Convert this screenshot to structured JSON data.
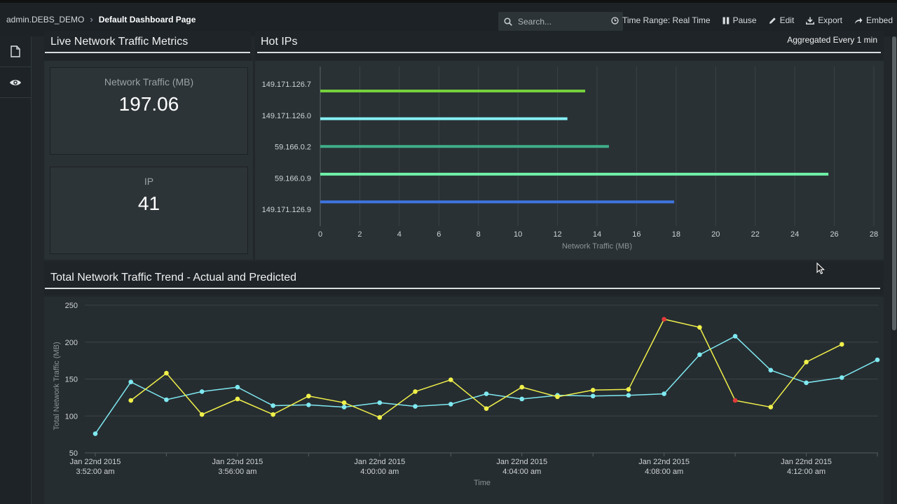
{
  "breadcrumb": {
    "user": "admin.DEBS_DEMO",
    "page": "Default Dashboard Page"
  },
  "search": {
    "placeholder": "Search..."
  },
  "toolbar": {
    "time_range": "Time Range: Real Time",
    "pause": "Pause",
    "edit": "Edit",
    "export": "Export",
    "embed": "Embed"
  },
  "sidebar": {
    "items": [
      {
        "icon": "document-icon"
      },
      {
        "icon": "eye-icon"
      }
    ]
  },
  "live_metrics": {
    "title": "Live Network Traffic Metrics",
    "traffic": {
      "label": "Network Traffic (MB)",
      "value": "197.06"
    },
    "ip": {
      "label": "IP",
      "value": "41"
    }
  },
  "hot_ips": {
    "title": "Hot IPs",
    "aggregation": "Aggregated Every 1 min",
    "chart_data": {
      "type": "bar",
      "orientation": "horizontal",
      "categories": [
        "149.171.126.7",
        "149.171.126.0",
        "59.166.0.2",
        "59.166.0.9",
        "149.171.126.9"
      ],
      "values": [
        13.4,
        12.5,
        14.6,
        25.7,
        17.9
      ],
      "colors": [
        "#74d03c",
        "#86f0f6",
        "#3fae8a",
        "#6ff2a8",
        "#3f74e0"
      ],
      "xlabel": "Network Traffic (MB)",
      "xlim": [
        0,
        28
      ],
      "xticks": [
        0,
        2,
        4,
        6,
        8,
        10,
        12,
        14,
        16,
        18,
        20,
        22,
        24,
        26,
        28
      ]
    }
  },
  "trend": {
    "title": "Total Network Traffic Trend - Actual and Predicted",
    "chart_data": {
      "type": "line",
      "ylabel": "Total Network Traffic (MB)",
      "xlabel": "Time",
      "ylim": [
        50,
        250
      ],
      "yticks": [
        50,
        100,
        150,
        200,
        250
      ],
      "xlim": [
        0,
        22
      ],
      "xticks": [
        {
          "x": 0,
          "line1": "Jan 22nd 2015",
          "line2": "3:52:00 am"
        },
        {
          "x": 4,
          "line1": "Jan 22nd 2015",
          "line2": "3:56:00 am"
        },
        {
          "x": 8,
          "line1": "Jan 22nd 2015",
          "line2": "4:00:00 am"
        },
        {
          "x": 12,
          "line1": "Jan 22nd 2015",
          "line2": "4:04:00 am"
        },
        {
          "x": 16,
          "line1": "Jan 22nd 2015",
          "line2": "4:08:00 am"
        },
        {
          "x": 20,
          "line1": "Jan 22nd 2015",
          "line2": "4:12:00 am"
        }
      ],
      "series": [
        {
          "name": "Actual",
          "color": "#7fe9f1",
          "x": [
            0,
            1,
            2,
            3,
            4,
            5,
            6,
            7,
            8,
            9,
            10,
            11,
            12,
            13,
            14,
            15,
            16,
            17,
            18,
            19,
            20,
            21,
            22
          ],
          "values": [
            76,
            146,
            122,
            133,
            139,
            114,
            115,
            112,
            118,
            113,
            116,
            130,
            123,
            128,
            127,
            128,
            130,
            183,
            208,
            162,
            145,
            152,
            176
          ]
        },
        {
          "name": "Predicted",
          "color": "#f0f04a",
          "anomaly_color": "#e23a3a",
          "x": [
            1,
            2,
            3,
            4,
            5,
            6,
            7,
            8,
            9,
            10,
            11,
            12,
            13,
            14,
            15,
            16,
            17,
            18,
            19,
            20,
            21
          ],
          "values": [
            121,
            158,
            102,
            123,
            102,
            127,
            118,
            98,
            133,
            149,
            110,
            139,
            126,
            135,
            136,
            231,
            220,
            121,
            112,
            173,
            197
          ],
          "anomalies": [
            16,
            18
          ]
        }
      ]
    }
  }
}
